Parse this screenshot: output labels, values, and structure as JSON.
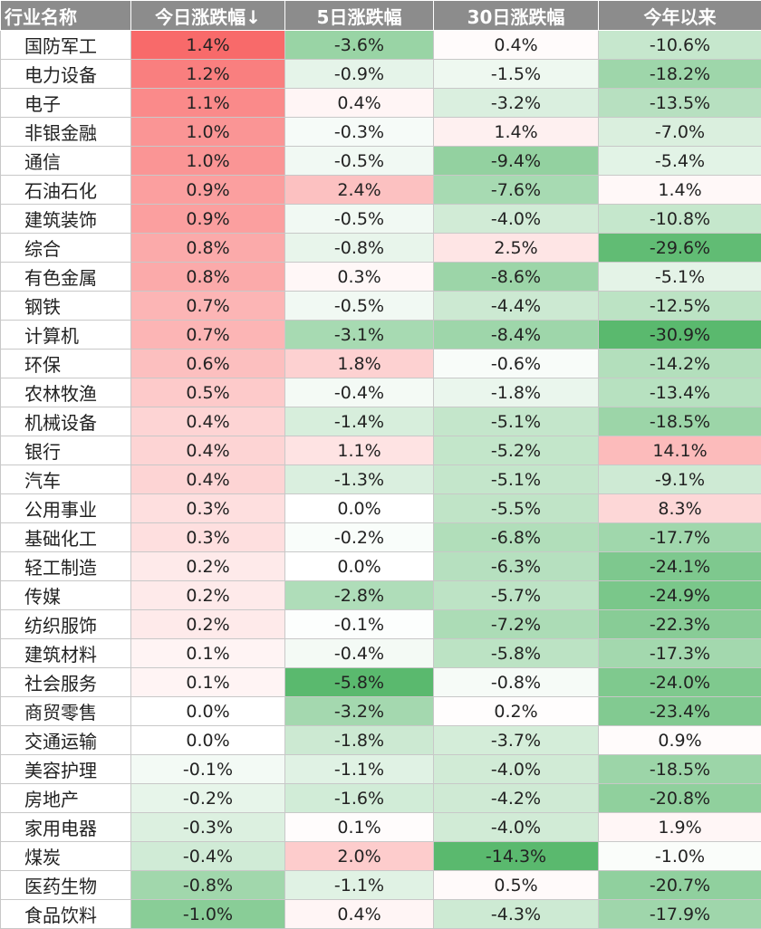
{
  "chart_data": {
    "type": "table",
    "columns": [
      "行业名称",
      "今日涨跌幅↓",
      "5日涨跌幅",
      "30日涨跌幅",
      "今年以来"
    ],
    "colors": {
      "positive": "#f86a6a",
      "negative": "#5ab96e",
      "neutral": "#ffffff",
      "header": "#8c8c8c"
    },
    "rows": [
      [
        "国防军工",
        "1.4%",
        "-3.6%",
        "0.4%",
        "-10.6%"
      ],
      [
        "电力设备",
        "1.2%",
        "-0.9%",
        "-1.5%",
        "-18.2%"
      ],
      [
        "电子",
        "1.1%",
        "0.4%",
        "-3.2%",
        "-13.5%"
      ],
      [
        "非银金融",
        "1.0%",
        "-0.3%",
        "1.4%",
        "-7.0%"
      ],
      [
        "通信",
        "1.0%",
        "-0.5%",
        "-9.4%",
        "-5.4%"
      ],
      [
        "石油石化",
        "0.9%",
        "2.4%",
        "-7.6%",
        "1.4%"
      ],
      [
        "建筑装饰",
        "0.9%",
        "-0.5%",
        "-4.0%",
        "-10.8%"
      ],
      [
        "综合",
        "0.8%",
        "-0.8%",
        "2.5%",
        "-29.6%"
      ],
      [
        "有色金属",
        "0.8%",
        "0.3%",
        "-8.6%",
        "-5.1%"
      ],
      [
        "钢铁",
        "0.7%",
        "-0.5%",
        "-4.4%",
        "-12.5%"
      ],
      [
        "计算机",
        "0.7%",
        "-3.1%",
        "-8.4%",
        "-30.9%"
      ],
      [
        "环保",
        "0.6%",
        "1.8%",
        "-0.6%",
        "-14.2%"
      ],
      [
        "农林牧渔",
        "0.5%",
        "-0.4%",
        "-1.8%",
        "-13.4%"
      ],
      [
        "机械设备",
        "0.4%",
        "-1.4%",
        "-5.1%",
        "-18.5%"
      ],
      [
        "银行",
        "0.4%",
        "1.1%",
        "-5.2%",
        "14.1%"
      ],
      [
        "汽车",
        "0.4%",
        "-1.3%",
        "-5.1%",
        "-9.1%"
      ],
      [
        "公用事业",
        "0.3%",
        "0.0%",
        "-5.5%",
        "8.3%"
      ],
      [
        "基础化工",
        "0.3%",
        "-0.2%",
        "-6.8%",
        "-17.7%"
      ],
      [
        "轻工制造",
        "0.2%",
        "0.0%",
        "-6.3%",
        "-24.1%"
      ],
      [
        "传媒",
        "0.2%",
        "-2.8%",
        "-5.7%",
        "-24.9%"
      ],
      [
        "纺织服饰",
        "0.2%",
        "-0.1%",
        "-7.2%",
        "-22.3%"
      ],
      [
        "建筑材料",
        "0.1%",
        "-0.4%",
        "-5.8%",
        "-17.3%"
      ],
      [
        "社会服务",
        "0.1%",
        "-5.8%",
        "-0.8%",
        "-24.0%"
      ],
      [
        "商贸零售",
        "0.0%",
        "-3.2%",
        "0.2%",
        "-23.4%"
      ],
      [
        "交通运输",
        "0.0%",
        "-1.8%",
        "-3.7%",
        "0.9%"
      ],
      [
        "美容护理",
        "-0.1%",
        "-1.1%",
        "-4.0%",
        "-18.5%"
      ],
      [
        "房地产",
        "-0.2%",
        "-1.6%",
        "-4.2%",
        "-20.8%"
      ],
      [
        "家用电器",
        "-0.3%",
        "0.1%",
        "-4.0%",
        "1.9%"
      ],
      [
        "煤炭",
        "-0.4%",
        "2.0%",
        "-14.3%",
        "-1.0%"
      ],
      [
        "医药生物",
        "-0.8%",
        "-1.1%",
        "0.5%",
        "-20.7%"
      ],
      [
        "食品饮料",
        "-1.0%",
        "0.4%",
        "-4.3%",
        "-17.9%"
      ]
    ]
  }
}
